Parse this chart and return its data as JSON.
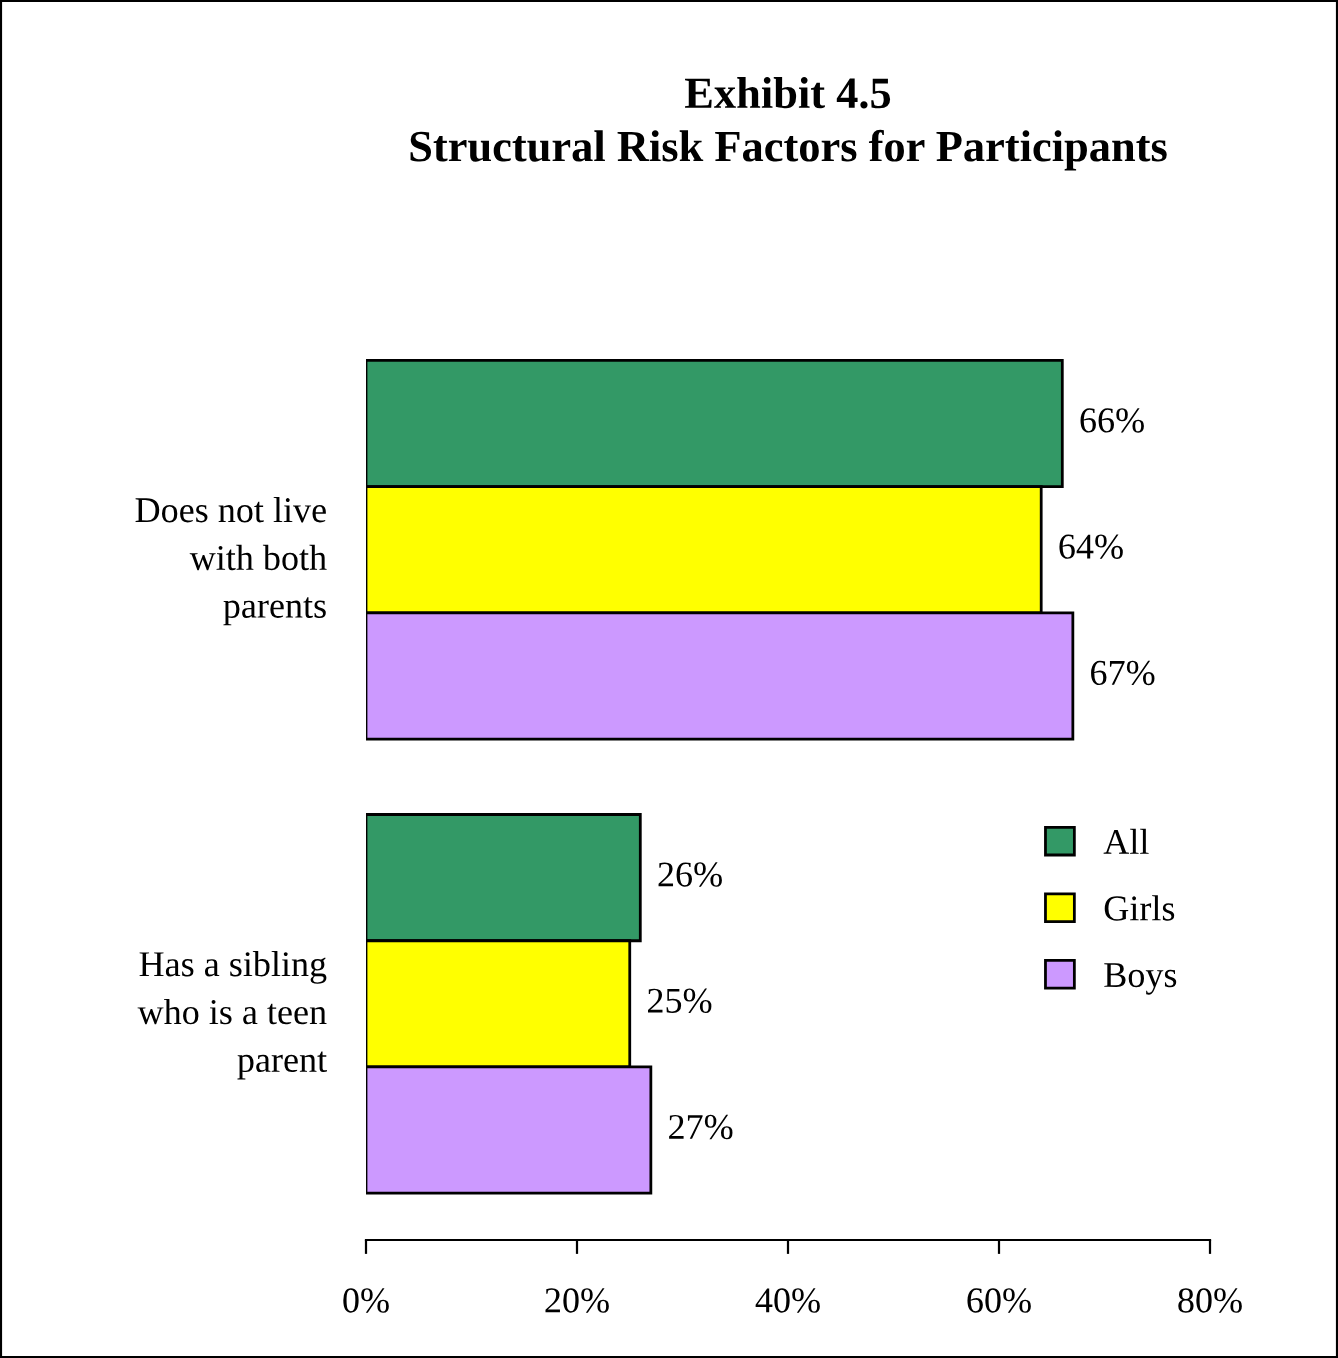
{
  "chart_data": {
    "type": "bar",
    "orientation": "horizontal",
    "title": "Exhibit 4.5\nStructural Risk Factors for Participants",
    "categories": [
      "Does not live\nwith both\nparents",
      "Has a sibling\nwho is a teen\nparent"
    ],
    "series": [
      {
        "name": "All",
        "color": "#339966",
        "values": [
          66,
          26
        ],
        "value_labels": [
          "66%",
          "26%"
        ]
      },
      {
        "name": "Girls",
        "color": "#ffff00",
        "values": [
          64,
          25
        ],
        "value_labels": [
          "64%",
          "25%"
        ]
      },
      {
        "name": "Boys",
        "color": "#cc99ff",
        "values": [
          67,
          27
        ],
        "value_labels": [
          "67%",
          "27%"
        ]
      }
    ],
    "xlim": [
      0,
      80
    ],
    "xticks": [
      {
        "value": 0,
        "label": "0%"
      },
      {
        "value": 20,
        "label": "20%"
      },
      {
        "value": 40,
        "label": "40%"
      },
      {
        "value": 60,
        "label": "60%"
      },
      {
        "value": 80,
        "label": "80%"
      }
    ],
    "grid": false,
    "legend": "right"
  }
}
